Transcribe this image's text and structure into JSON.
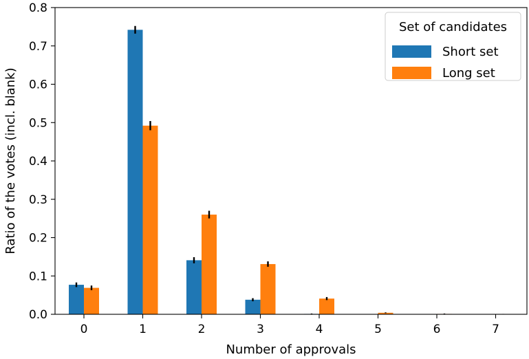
{
  "chart_data": {
    "type": "bar",
    "title": "",
    "xlabel": "Number of approvals",
    "ylabel": "Ratio of the votes (incl. blank)",
    "categories": [
      "0",
      "1",
      "2",
      "3",
      "4",
      "5",
      "6",
      "7"
    ],
    "ylim": [
      0,
      0.8
    ],
    "yticks": [
      "0.0",
      "0.1",
      "0.2",
      "0.3",
      "0.4",
      "0.5",
      "0.6",
      "0.7",
      "0.8"
    ],
    "grid": false,
    "legend": {
      "title": "Set of candidates",
      "placement": "top-right"
    },
    "series": [
      {
        "name": "Short set",
        "color": "#1f77b4",
        "values": [
          0.077,
          0.742,
          0.141,
          0.038,
          0.001,
          0.0,
          0.0,
          0.0
        ],
        "errors": [
          0.006,
          0.01,
          0.008,
          0.004,
          0.001,
          0.0,
          0.0,
          0.0
        ]
      },
      {
        "name": "Long set",
        "color": "#ff7f0e",
        "values": [
          0.069,
          0.492,
          0.26,
          0.131,
          0.041,
          0.004,
          0.001,
          0.0
        ],
        "errors": [
          0.006,
          0.012,
          0.01,
          0.007,
          0.004,
          0.001,
          0.001,
          0.001
        ]
      }
    ]
  }
}
